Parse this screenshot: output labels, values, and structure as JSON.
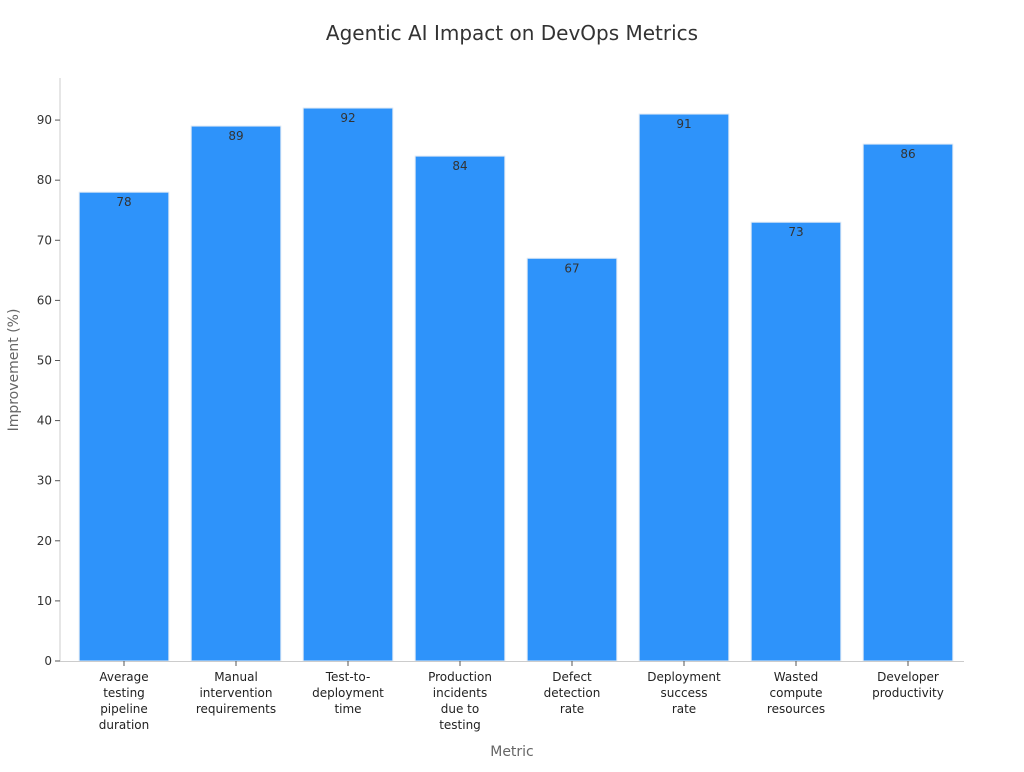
{
  "chart_data": {
    "type": "bar",
    "title": "Agentic AI Impact on DevOps Metrics",
    "xlabel": "Metric",
    "ylabel": "Improvement (%)",
    "ylim": [
      0,
      97
    ],
    "yticks": [
      0,
      10,
      20,
      30,
      40,
      50,
      60,
      70,
      80,
      90
    ],
    "grid": false,
    "categories": [
      "Average testing pipeline duration",
      "Manual intervention requirements",
      "Test-to-deployment time",
      "Production incidents due to testing",
      "Defect detection rate",
      "Deployment success rate",
      "Wasted compute resources",
      "Developer productivity"
    ],
    "category_lines": [
      [
        "Average",
        "testing",
        "pipeline",
        "duration"
      ],
      [
        "Manual",
        "intervention",
        "requirements"
      ],
      [
        "Test-to-",
        "deployment",
        "time"
      ],
      [
        "Production",
        "incidents",
        "due to",
        "testing"
      ],
      [
        "Defect",
        "detection",
        "rate"
      ],
      [
        "Deployment",
        "success",
        "rate"
      ],
      [
        "Wasted",
        "compute",
        "resources"
      ],
      [
        "Developer",
        "productivity"
      ]
    ],
    "values": [
      78,
      89,
      92,
      84,
      67,
      91,
      73,
      86
    ],
    "bar_color": "#2e93fa",
    "bar_edge_color": "#dce8f5"
  }
}
